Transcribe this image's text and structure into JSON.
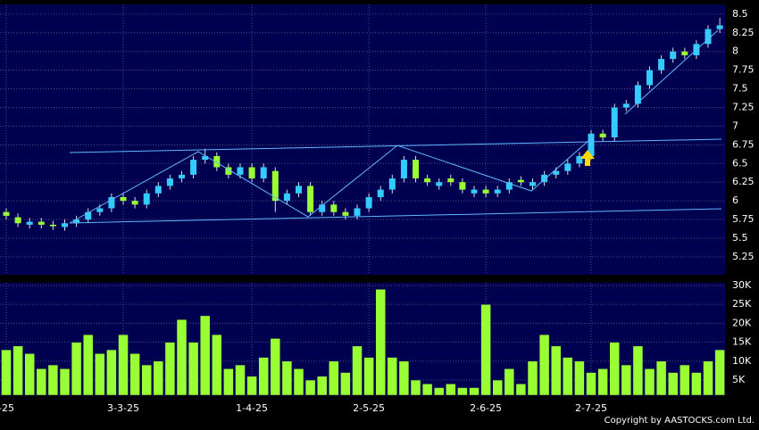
{
  "chart_data": [
    {
      "type": "candlestick",
      "up_color": "#33ccff",
      "down_color": "#99ff33",
      "categories": [
        "-25",
        null,
        null,
        null,
        null,
        null,
        null,
        null,
        null,
        null,
        "3-3-25",
        null,
        null,
        null,
        null,
        null,
        null,
        null,
        null,
        null,
        null,
        "1-4-25",
        null,
        null,
        null,
        null,
        null,
        null,
        null,
        null,
        null,
        "2-5-25",
        null,
        null,
        null,
        null,
        null,
        null,
        null,
        null,
        null,
        "2-6-25",
        null,
        null,
        null,
        null,
        null,
        null,
        null,
        null,
        "2-7-25",
        null,
        null,
        null,
        null,
        null,
        null,
        null,
        null,
        null,
        null,
        null
      ],
      "open": [
        5.85,
        5.78,
        5.68,
        5.72,
        5.68,
        5.65,
        5.7,
        5.75,
        5.85,
        5.9,
        6.05,
        6.0,
        5.95,
        6.1,
        6.2,
        6.3,
        6.35,
        6.55,
        6.6,
        6.45,
        6.35,
        6.45,
        6.3,
        6.4,
        6.0,
        6.1,
        6.2,
        5.85,
        5.95,
        5.85,
        5.8,
        5.9,
        6.05,
        6.15,
        6.3,
        6.55,
        6.3,
        6.2,
        6.3,
        6.25,
        6.1,
        6.15,
        6.1,
        6.15,
        6.28,
        6.2,
        6.25,
        6.35,
        6.4,
        6.5,
        6.6,
        6.9,
        6.85,
        7.25,
        7.3,
        7.55,
        7.75,
        7.9,
        8.0,
        7.95,
        8.1,
        8.3
      ],
      "high": [
        5.9,
        5.83,
        5.77,
        5.77,
        5.73,
        5.75,
        5.8,
        5.9,
        5.95,
        6.1,
        6.1,
        6.05,
        6.15,
        6.25,
        6.35,
        6.4,
        6.6,
        6.7,
        6.65,
        6.5,
        6.5,
        6.5,
        6.5,
        6.45,
        6.15,
        6.25,
        6.25,
        6.0,
        6.0,
        5.9,
        5.95,
        6.1,
        6.2,
        6.35,
        6.6,
        6.6,
        6.35,
        6.3,
        6.35,
        6.3,
        6.2,
        6.2,
        6.2,
        6.3,
        6.33,
        6.3,
        6.4,
        6.45,
        6.55,
        6.65,
        6.95,
        6.95,
        7.3,
        7.35,
        7.6,
        7.8,
        7.95,
        8.05,
        8.05,
        8.15,
        8.35,
        8.45
      ],
      "low": [
        5.75,
        5.65,
        5.63,
        5.63,
        5.61,
        5.6,
        5.65,
        5.7,
        5.8,
        5.85,
        5.95,
        5.9,
        5.9,
        6.05,
        6.15,
        6.25,
        6.3,
        6.5,
        6.4,
        6.3,
        6.3,
        6.25,
        6.25,
        5.85,
        5.95,
        6.05,
        5.8,
        5.8,
        5.8,
        5.75,
        5.75,
        5.85,
        6.0,
        6.1,
        6.25,
        6.25,
        6.2,
        6.15,
        6.2,
        6.1,
        6.05,
        6.05,
        6.05,
        6.1,
        6.2,
        6.15,
        6.2,
        6.3,
        6.35,
        6.45,
        6.55,
        6.8,
        6.8,
        7.2,
        7.25,
        7.5,
        7.7,
        7.85,
        7.9,
        7.9,
        8.05,
        8.25
      ],
      "close": [
        5.8,
        5.7,
        5.72,
        5.68,
        5.66,
        5.7,
        5.75,
        5.85,
        5.9,
        6.05,
        6.0,
        5.95,
        6.1,
        6.2,
        6.3,
        6.35,
        6.55,
        6.6,
        6.45,
        6.35,
        6.45,
        6.3,
        6.45,
        6.0,
        6.1,
        6.2,
        5.85,
        5.95,
        5.85,
        5.8,
        5.9,
        6.05,
        6.15,
        6.3,
        6.55,
        6.3,
        6.25,
        6.25,
        6.25,
        6.15,
        6.15,
        6.1,
        6.15,
        6.25,
        6.25,
        6.25,
        6.35,
        6.4,
        6.5,
        6.6,
        6.9,
        6.85,
        7.25,
        7.3,
        7.55,
        7.75,
        7.9,
        8.0,
        7.95,
        8.1,
        8.3,
        8.35
      ],
      "ylim": [
        5.01,
        8.63
      ],
      "yticks": [
        5.25,
        5.5,
        5.75,
        6,
        6.25,
        6.5,
        6.75,
        7,
        7.25,
        7.5,
        7.75,
        8,
        8.25,
        8.5
      ],
      "grid": true
    },
    {
      "type": "bar",
      "color": "#99ff33",
      "values": [
        13000,
        14000,
        12000,
        8000,
        9000,
        8000,
        15000,
        17000,
        12000,
        13000,
        17000,
        12000,
        9000,
        10000,
        15000,
        21000,
        15000,
        22000,
        17000,
        8000,
        9000,
        6000,
        11000,
        16000,
        10000,
        8000,
        5000,
        6000,
        10000,
        7000,
        14000,
        11000,
        29000,
        11000,
        10000,
        5000,
        4000,
        3000,
        4000,
        3000,
        3000,
        25000,
        5000,
        8000,
        4000,
        10000,
        17000,
        14000,
        11000,
        10000,
        7000,
        8000,
        15000,
        9000,
        14000,
        8000,
        10000,
        7000,
        9000,
        7000,
        10000,
        13000
      ],
      "ylim": [
        1000,
        30700
      ],
      "yticks": [
        {
          "value": 5000,
          "label": "5K"
        },
        {
          "value": 10000,
          "label": "10K"
        },
        {
          "value": 15000,
          "label": "15K"
        },
        {
          "value": 20000,
          "label": "20K"
        },
        {
          "value": 25000,
          "label": "25K"
        },
        {
          "value": 30000,
          "label": "30K"
        }
      ],
      "grid": true
    }
  ],
  "footer": "Copyright by AASTOCKS.com Ltd."
}
